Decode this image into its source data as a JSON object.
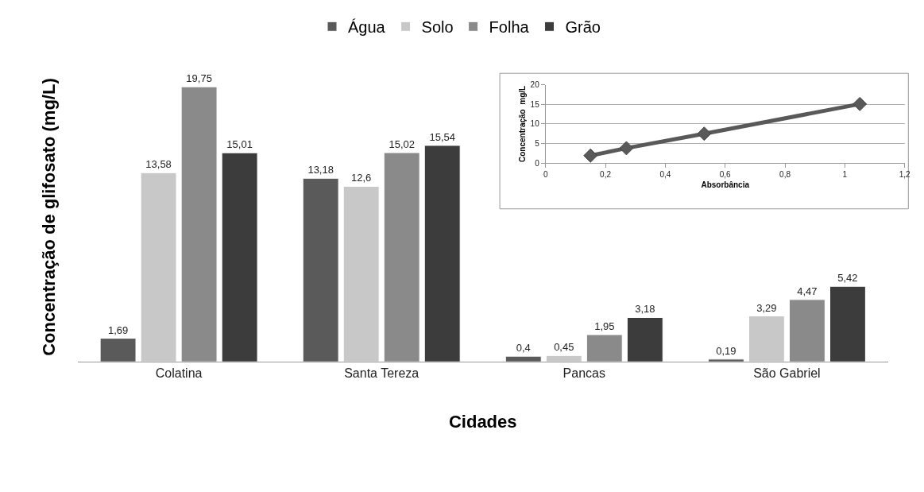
{
  "chart_data": [
    {
      "type": "bar",
      "categories": [
        "Colatina",
        "Santa Tereza",
        "Pancas",
        "São Gabriel"
      ],
      "xlabel": "Cidades",
      "ylabel": "Concentração de glifosato (mg/L)",
      "tick_labels": "x",
      "legend": "top",
      "grid": false,
      "series": [
        {
          "name": "Água",
          "color": "#5a5a5a",
          "values": [
            1.69,
            13.18,
            0.4,
            0.19
          ],
          "value_labels": [
            "1,69",
            "13,18",
            "0,4",
            "0,19"
          ]
        },
        {
          "name": "Solo",
          "color": "#c8c8c8",
          "values": [
            13.58,
            12.6,
            0.45,
            3.29
          ],
          "value_labels": [
            "13,58",
            "12,6",
            "0,45",
            "3,29"
          ]
        },
        {
          "name": "Folha",
          "color": "#8a8a8a",
          "values": [
            19.75,
            15.02,
            1.95,
            4.47
          ],
          "value_labels": [
            "19,75",
            "15,02",
            "1,95",
            "4,47"
          ]
        },
        {
          "name": "Grão",
          "color": "#3c3c3c",
          "values": [
            15.01,
            15.54,
            3.18,
            5.42
          ],
          "value_labels": [
            "15,01",
            "15,54",
            "3,18",
            "5,42"
          ]
        }
      ]
    },
    {
      "type": "line",
      "xlabel": "Absorbância",
      "ylabel": "Concentração  mg/L",
      "marker": "diamond",
      "grid": "y",
      "legend": false,
      "xlim": [
        0,
        1.2
      ],
      "xticks": [
        0,
        {
          "value": 0.2,
          "label": "0,2"
        },
        {
          "value": 0.4,
          "label": "0,4"
        },
        {
          "value": 0.6,
          "label": "0,6"
        },
        {
          "value": 0.8,
          "label": "0,8"
        },
        1,
        {
          "value": 1.2,
          "label": "1,2"
        }
      ],
      "ylim": [
        0,
        20
      ],
      "yticks": [
        0,
        5,
        10,
        15,
        20
      ],
      "series": [
        {
          "color": "#595959",
          "x": [
            0.15,
            0.27,
            0.53,
            1.05
          ],
          "values": [
            1.9,
            3.8,
            7.5,
            15.1
          ]
        }
      ]
    }
  ]
}
